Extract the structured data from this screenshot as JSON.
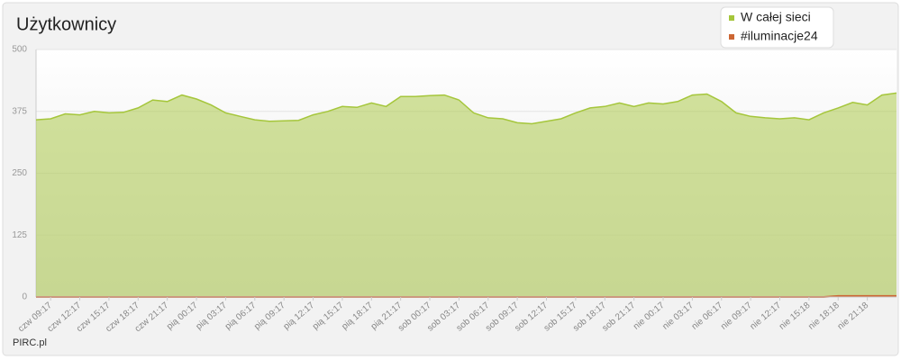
{
  "chart_data": {
    "type": "area",
    "title": "Użytkownicy",
    "source": "PIRC.pl",
    "categories": [
      null,
      "czw 09:17",
      null,
      "czw 12:17",
      null,
      "czw 15:17",
      null,
      "czw 18:17",
      null,
      "czw 21:17",
      null,
      "pią 00:17",
      null,
      "pią 03:17",
      null,
      "pią 06:17",
      null,
      "pią 09:17",
      null,
      "pią 12:17",
      null,
      "pią 15:17",
      null,
      "pią 18:17",
      null,
      "pią 21:17",
      null,
      "sob 00:17",
      null,
      "sob 03:17",
      null,
      "sob 06:17",
      null,
      "sob 09:17",
      null,
      "sob 12:17",
      null,
      "sob 15:17",
      null,
      "sob 18:17",
      null,
      "sob 21:17",
      null,
      "nie 00:17",
      null,
      "nie 03:17",
      null,
      "nie 06:17",
      null,
      "nie 09:17",
      null,
      "nie 12:17",
      null,
      "nie 15:18",
      null,
      "nie 18:18",
      null,
      "nie 21:18",
      null,
      null
    ],
    "series": [
      {
        "name": "W całej sieci",
        "color": "#a5c63b",
        "values": [
          358,
          360,
          370,
          368,
          375,
          372,
          373,
          382,
          398,
          395,
          408,
          400,
          388,
          372,
          365,
          358,
          355,
          356,
          357,
          368,
          375,
          385,
          383,
          392,
          385,
          405,
          405,
          407,
          408,
          398,
          372,
          362,
          360,
          352,
          350,
          355,
          360,
          372,
          382,
          385,
          392,
          385,
          392,
          390,
          395,
          408,
          410,
          395,
          372,
          365,
          362,
          360,
          362,
          358,
          372,
          382,
          393,
          388,
          408,
          412
        ]
      },
      {
        "name": "#iluminacje24",
        "color": "#cc6633",
        "values": [
          0,
          0,
          0,
          0,
          0,
          0,
          0,
          0,
          0,
          0,
          0,
          0,
          0,
          0,
          0,
          0,
          0,
          0,
          0,
          0,
          0,
          0,
          0,
          0,
          0,
          0,
          0,
          0,
          0,
          0,
          0,
          0,
          0,
          0,
          0,
          0,
          0,
          0,
          0,
          0,
          0,
          0,
          0,
          0,
          0,
          0,
          0,
          0,
          0,
          0,
          0,
          0,
          0,
          0,
          0,
          2,
          2,
          2,
          2,
          2
        ]
      }
    ],
    "ylim": [
      0,
      500
    ],
    "yticks": [
      0,
      125,
      250,
      375,
      500
    ],
    "grid": true,
    "legend": "top-right"
  }
}
